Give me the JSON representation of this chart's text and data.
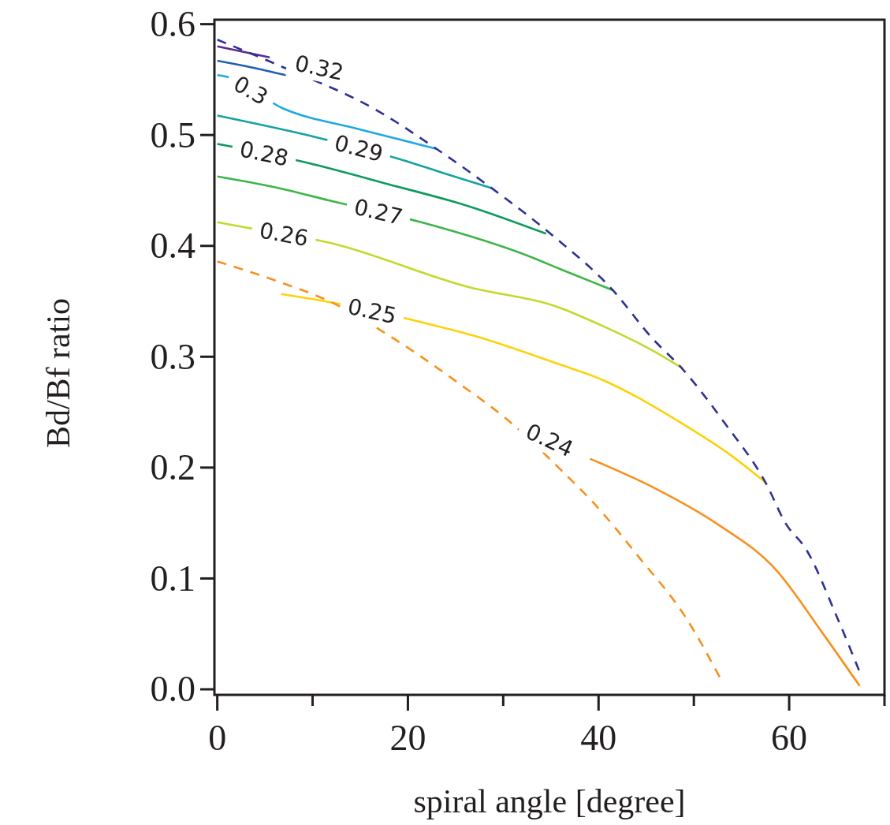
{
  "chart_data": {
    "type": "line",
    "xlabel": "spiral angle [degree]",
    "ylabel": "Bd/Bf ratio",
    "xlim": [
      -0.3,
      70
    ],
    "ylim": [
      -0.005,
      0.604
    ],
    "xticks": [
      0,
      {
        "value": 10,
        "label": null
      },
      20,
      {
        "value": 30,
        "label": null
      },
      40,
      {
        "value": 50,
        "label": null
      },
      60,
      {
        "value": 70,
        "label": null
      }
    ],
    "yticks": [
      {
        "value": 0,
        "label": "0.0"
      },
      0.1,
      0.2,
      0.3,
      0.4,
      0.5,
      0.6
    ],
    "grid": false,
    "series": [
      {
        "name": "0.32",
        "color": "#5b2c8f",
        "x": [
          0,
          5.5
        ],
        "values": [
          0.58,
          0.57
        ]
      },
      {
        "color": "#1f5fb0",
        "x": [
          0,
          3.6,
          7.2
        ],
        "values": [
          0.567,
          0.561,
          0.554
        ]
      },
      {
        "name": "0.3",
        "color": "#1fa9e1",
        "x": [
          0,
          0.8,
          6.9,
          15,
          23.0
        ],
        "values": [
          0.554,
          0.553,
          0.524,
          0.505,
          0.4875
        ]
      },
      {
        "name": "0.29",
        "color": "#14a3a0",
        "x": [
          0,
          10.6,
          19.4,
          23.6,
          28.8
        ],
        "values": [
          0.5175,
          0.4975,
          0.4776,
          0.466,
          0.452
        ]
      },
      {
        "name": "0.28",
        "color": "#0c9b5c",
        "x": [
          0,
          0.6,
          9.4,
          18.0,
          26.3,
          34.5
        ],
        "values": [
          0.492,
          0.491,
          0.475,
          0.4555,
          0.436,
          0.411
        ]
      },
      {
        "name": "0.27",
        "color": "#3db549",
        "x": [
          0,
          6,
          12.2,
          21.1,
          33.2,
          36.0,
          41.5
        ],
        "values": [
          0.4626,
          0.453,
          0.44,
          0.422,
          0.389,
          0.379,
          0.36
        ]
      },
      {
        "name": "0.26",
        "color": "#c4d82d",
        "x": [
          0,
          2.7,
          11.7,
          26.3,
          36.0,
          39.6,
          46.0,
          48.9
        ],
        "values": [
          0.4214,
          0.417,
          0.403,
          0.363,
          0.344,
          0.331,
          0.304,
          0.289
        ]
      },
      {
        "name": "0.25",
        "color": "#fdd20a",
        "x": [
          6.7,
          12.0,
          21.0,
          26.9,
          36.1,
          39.6,
          49.1,
          53.9,
          57.6
        ],
        "values": [
          0.3566,
          0.349,
          0.332,
          0.319,
          0.2925,
          0.282,
          0.238,
          0.211,
          0.186
        ]
      },
      {
        "name": "0.24",
        "color": "#f7901e",
        "x": [
          39.1,
          46.0,
          52.3,
          58.7,
          63.4,
          67.4
        ],
        "values": [
          0.208,
          0.181,
          0.15,
          0.107,
          0.052,
          0.003
        ]
      },
      {
        "color": "#2e3192",
        "line_style": "dashed",
        "x": [
          0,
          6.4,
          16.8,
          23.0,
          28.8,
          35.1,
          41.5,
          45.6,
          48.8,
          53.2,
          57.7,
          59.6,
          61.8,
          65.0,
          67.5
        ],
        "values": [
          0.586,
          0.563,
          0.522,
          0.4875,
          0.452,
          0.41,
          0.36,
          0.317,
          0.289,
          0.2406,
          0.1836,
          0.15,
          0.126,
          0.0655,
          0.0135
        ]
      },
      {
        "color": "#f7901e",
        "line_style": "dashed",
        "x": [
          0,
          6.0,
          12.0,
          18.4,
          25.1,
          30.6,
          35.8,
          39.6,
          44.4,
          49.1,
          52.9
        ],
        "values": [
          0.386,
          0.369,
          0.349,
          0.317,
          0.2775,
          0.242,
          0.2,
          0.167,
          0.1175,
          0.0655,
          0.008
        ]
      }
    ]
  }
}
